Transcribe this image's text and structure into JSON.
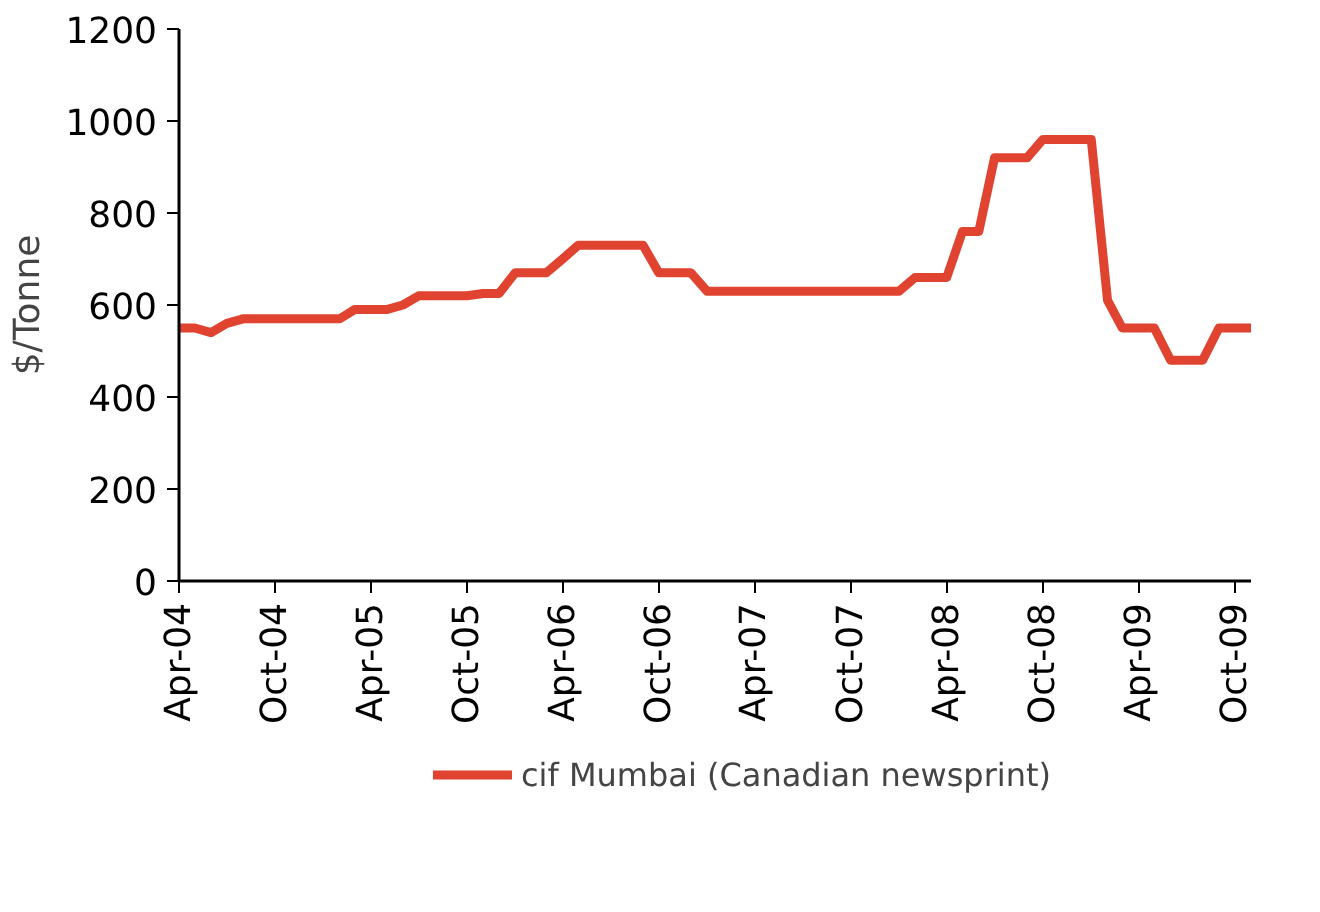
{
  "chart_data": {
    "type": "line",
    "ylabel": "$/Tonne",
    "x": [
      "2004-04",
      "2004-05",
      "2004-06",
      "2004-07",
      "2004-08",
      "2004-09",
      "2004-10",
      "2004-11",
      "2004-12",
      "2005-01",
      "2005-02",
      "2005-03",
      "2005-04",
      "2005-05",
      "2005-06",
      "2005-07",
      "2005-08",
      "2005-09",
      "2005-10",
      "2005-11",
      "2005-12",
      "2006-01",
      "2006-02",
      "2006-03",
      "2006-04",
      "2006-05",
      "2006-06",
      "2006-07",
      "2006-08",
      "2006-09",
      "2006-10",
      "2006-11",
      "2006-12",
      "2007-01",
      "2007-02",
      "2007-03",
      "2007-04",
      "2007-05",
      "2007-06",
      "2007-07",
      "2007-08",
      "2007-09",
      "2007-10",
      "2007-11",
      "2007-12",
      "2008-01",
      "2008-02",
      "2008-03",
      "2008-04",
      "2008-05",
      "2008-06",
      "2008-07",
      "2008-08",
      "2008-09",
      "2008-10",
      "2008-11",
      "2008-12",
      "2009-01",
      "2009-02",
      "2009-03",
      "2009-04",
      "2009-05",
      "2009-06",
      "2009-07",
      "2009-08",
      "2009-09",
      "2009-10",
      "2009-11"
    ],
    "series": [
      {
        "name": "cif Mumbai (Canadian newsprint)",
        "color": "#e0432f",
        "values": [
          550,
          550,
          540,
          560,
          570,
          570,
          570,
          570,
          570,
          570,
          570,
          590,
          590,
          590,
          600,
          620,
          620,
          620,
          620,
          625,
          625,
          670,
          670,
          670,
          700,
          730,
          730,
          730,
          730,
          730,
          670,
          670,
          670,
          630,
          630,
          630,
          630,
          630,
          630,
          630,
          630,
          630,
          630,
          630,
          630,
          630,
          660,
          660,
          660,
          760,
          760,
          920,
          920,
          920,
          960,
          960,
          960,
          960,
          610,
          550,
          550,
          550,
          480,
          480,
          480,
          550,
          550,
          550
        ]
      }
    ],
    "xlim": [
      "2004-04",
      "2009-11"
    ],
    "xticks": [
      {
        "value": "2004-04",
        "label": "Apr-04"
      },
      {
        "value": "2004-10",
        "label": "Oct-04"
      },
      {
        "value": "2005-04",
        "label": "Apr-05"
      },
      {
        "value": "2005-10",
        "label": "Oct-05"
      },
      {
        "value": "2006-04",
        "label": "Apr-06"
      },
      {
        "value": "2006-10",
        "label": "Oct-06"
      },
      {
        "value": "2007-04",
        "label": "Apr-07"
      },
      {
        "value": "2007-10",
        "label": "Oct-07"
      },
      {
        "value": "2008-04",
        "label": "Apr-08"
      },
      {
        "value": "2008-10",
        "label": "Oct-08"
      },
      {
        "value": "2009-04",
        "label": "Apr-09"
      },
      {
        "value": "2009-10",
        "label": "Oct-09"
      }
    ],
    "ylim": [
      0,
      1200
    ],
    "yticks": [
      0,
      200,
      400,
      600,
      800,
      1000,
      1200
    ],
    "grid": false,
    "legend": "bottom",
    "marker": "none",
    "line_style": "solid"
  }
}
